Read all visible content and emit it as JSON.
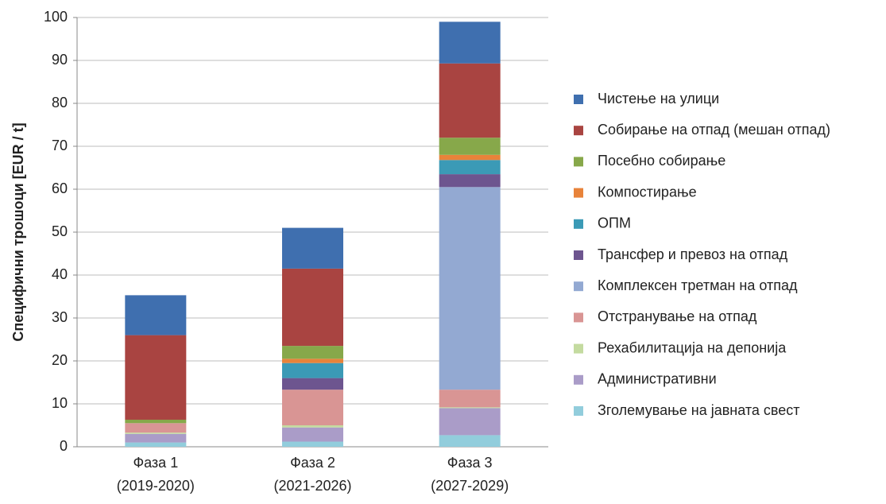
{
  "chart_data": {
    "type": "stacked_bar",
    "y_label": "Специфични трошоци [EUR / t]",
    "categories": [
      [
        "Фаза 1",
        "(2019-2020)"
      ],
      [
        "Фаза 2",
        "(2021-2026)"
      ],
      [
        "Фаза 3",
        "(2027-2029)"
      ]
    ],
    "ylim": [
      0,
      100
    ],
    "yticks": [
      0,
      10,
      20,
      30,
      40,
      50,
      60,
      70,
      80,
      90,
      100
    ],
    "grid": true,
    "legend": "right",
    "series": [
      {
        "name": "Чистење на улици",
        "color": "#3f6faf",
        "values": [
          9.3,
          9.5,
          9.7
        ]
      },
      {
        "name": "Собирање на отпад (мешан отпад)",
        "color": "#a94441",
        "values": [
          19.7,
          18,
          17.3
        ]
      },
      {
        "name": "Посебно собирање",
        "color": "#87a84a",
        "values": [
          0.8,
          3,
          4
        ]
      },
      {
        "name": "Компостирање",
        "color": "#e8833a",
        "values": [
          0,
          1,
          1.2
        ]
      },
      {
        "name": "ОПМ",
        "color": "#3b9ab6",
        "values": [
          0,
          3.5,
          3.3
        ]
      },
      {
        "name": "Трансфер и превоз на отпад",
        "color": "#6d558f",
        "values": [
          0,
          2.7,
          3
        ]
      },
      {
        "name": "Комплексен третман на отпад",
        "color": "#93a9d2",
        "values": [
          0,
          0,
          47.2
        ]
      },
      {
        "name": "Отстранување на отпад",
        "color": "#d99594",
        "values": [
          2.2,
          8.3,
          4.1
        ]
      },
      {
        "name": "Рехабилитација на депонија",
        "color": "#c4dba0",
        "values": [
          0.3,
          0.5,
          0.2
        ]
      },
      {
        "name": "Административни",
        "color": "#aa9cc8",
        "values": [
          2,
          3.3,
          6.3
        ]
      },
      {
        "name": "Зголемување на јавната свест",
        "color": "#92cddc",
        "values": [
          1,
          1.2,
          2.7
        ]
      }
    ]
  }
}
